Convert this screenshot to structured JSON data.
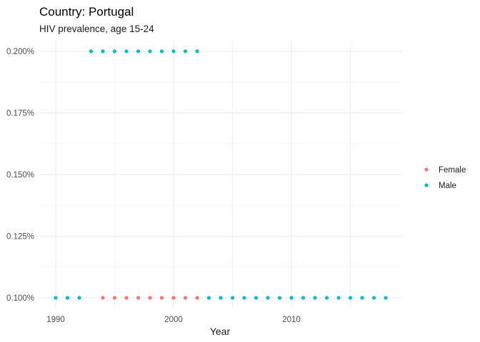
{
  "chart_data": {
    "type": "scatter",
    "title": "Country: Portugal",
    "subtitle": "HIV prevalence, age 15-24",
    "xlabel": "Year",
    "ylabel": "",
    "xlim": [
      1989.5,
      2018.9
    ],
    "ylim": [
      0.001,
      0.002
    ],
    "x_ticks": [
      1990,
      2000,
      2010
    ],
    "x_tick_labels": [
      "1990",
      "2000",
      "2010"
    ],
    "y_ticks": [
      0.001,
      0.00125,
      0.0015,
      0.00175,
      0.002
    ],
    "y_tick_labels": [
      "0.100%",
      "0.125%",
      "0.150%",
      "0.175%",
      "0.200%"
    ],
    "grid": true,
    "legend_placement": "right",
    "series": [
      {
        "name": "Female",
        "color": "#F8766D",
        "points": [
          {
            "x": 1994,
            "y": 0.001
          },
          {
            "x": 1995,
            "y": 0.001
          },
          {
            "x": 1996,
            "y": 0.001
          },
          {
            "x": 1997,
            "y": 0.001
          },
          {
            "x": 1998,
            "y": 0.001
          },
          {
            "x": 1999,
            "y": 0.001
          },
          {
            "x": 2000,
            "y": 0.001
          },
          {
            "x": 2001,
            "y": 0.001
          },
          {
            "x": 2002,
            "y": 0.001
          }
        ]
      },
      {
        "name": "Male",
        "color": "#00BFC4",
        "points": [
          {
            "x": 1990,
            "y": 0.001
          },
          {
            "x": 1991,
            "y": 0.001
          },
          {
            "x": 1992,
            "y": 0.001
          },
          {
            "x": 1993,
            "y": 0.002
          },
          {
            "x": 1994,
            "y": 0.002
          },
          {
            "x": 1995,
            "y": 0.002
          },
          {
            "x": 1996,
            "y": 0.002
          },
          {
            "x": 1997,
            "y": 0.002
          },
          {
            "x": 1998,
            "y": 0.002
          },
          {
            "x": 1999,
            "y": 0.002
          },
          {
            "x": 2000,
            "y": 0.002
          },
          {
            "x": 2001,
            "y": 0.002
          },
          {
            "x": 2002,
            "y": 0.002
          },
          {
            "x": 2003,
            "y": 0.001
          },
          {
            "x": 2004,
            "y": 0.001
          },
          {
            "x": 2005,
            "y": 0.001
          },
          {
            "x": 2006,
            "y": 0.001
          },
          {
            "x": 2007,
            "y": 0.001
          },
          {
            "x": 2008,
            "y": 0.001
          },
          {
            "x": 2009,
            "y": 0.001
          },
          {
            "x": 2010,
            "y": 0.001
          },
          {
            "x": 2011,
            "y": 0.001
          },
          {
            "x": 2012,
            "y": 0.001
          },
          {
            "x": 2013,
            "y": 0.001
          },
          {
            "x": 2014,
            "y": 0.001
          },
          {
            "x": 2015,
            "y": 0.001
          },
          {
            "x": 2016,
            "y": 0.001
          },
          {
            "x": 2017,
            "y": 0.001
          },
          {
            "x": 2018,
            "y": 0.001
          }
        ]
      }
    ]
  }
}
